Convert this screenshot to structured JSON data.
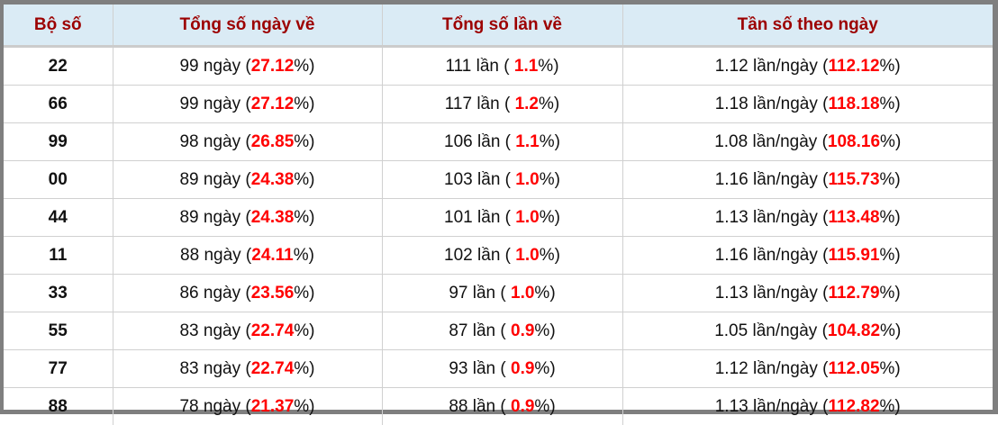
{
  "headers": [
    "Bộ số",
    "Tổng số ngày về",
    "Tổng số lần về",
    "Tần số theo ngày"
  ],
  "colors": {
    "header_bg": "#daebf5",
    "header_text": "#9c0000",
    "highlight": "#ff0000",
    "frame": "#7f7f7f"
  },
  "rows": [
    {
      "bo_so": "22",
      "ngay": "99",
      "ngay_pct": "27.12",
      "lan": "111",
      "lan_pct": "1.1",
      "tan_so": "1.12",
      "tan_so_pct": "112.12"
    },
    {
      "bo_so": "66",
      "ngay": "99",
      "ngay_pct": "27.12",
      "lan": "117",
      "lan_pct": "1.2",
      "tan_so": "1.18",
      "tan_so_pct": "118.18"
    },
    {
      "bo_so": "99",
      "ngay": "98",
      "ngay_pct": "26.85",
      "lan": "106",
      "lan_pct": "1.1",
      "tan_so": "1.08",
      "tan_so_pct": "108.16"
    },
    {
      "bo_so": "00",
      "ngay": "89",
      "ngay_pct": "24.38",
      "lan": "103",
      "lan_pct": "1.0",
      "tan_so": "1.16",
      "tan_so_pct": "115.73"
    },
    {
      "bo_so": "44",
      "ngay": "89",
      "ngay_pct": "24.38",
      "lan": "101",
      "lan_pct": "1.0",
      "tan_so": "1.13",
      "tan_so_pct": "113.48"
    },
    {
      "bo_so": "11",
      "ngay": "88",
      "ngay_pct": "24.11",
      "lan": "102",
      "lan_pct": "1.0",
      "tan_so": "1.16",
      "tan_so_pct": "115.91"
    },
    {
      "bo_so": "33",
      "ngay": "86",
      "ngay_pct": "23.56",
      "lan": "97",
      "lan_pct": "1.0",
      "tan_so": "1.13",
      "tan_so_pct": "112.79"
    },
    {
      "bo_so": "55",
      "ngay": "83",
      "ngay_pct": "22.74",
      "lan": "87",
      "lan_pct": "0.9",
      "tan_so": "1.05",
      "tan_so_pct": "104.82"
    },
    {
      "bo_so": "77",
      "ngay": "83",
      "ngay_pct": "22.74",
      "lan": "93",
      "lan_pct": "0.9",
      "tan_so": "1.12",
      "tan_so_pct": "112.05"
    },
    {
      "bo_so": "88",
      "ngay": "78",
      "ngay_pct": "21.37",
      "lan": "88",
      "lan_pct": "0.9",
      "tan_so": "1.13",
      "tan_so_pct": "112.82"
    }
  ],
  "units": {
    "ngay": "ngày",
    "lan": "lần",
    "tan_so": "lần/ngày"
  }
}
